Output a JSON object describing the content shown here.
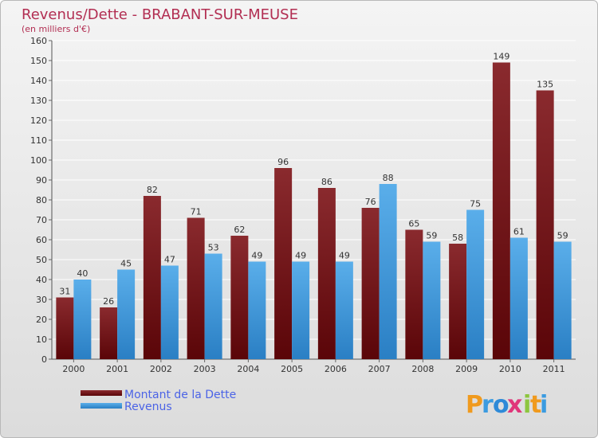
{
  "chart_data": {
    "type": "bar",
    "title": "Revenus/Dette - BRABANT-SUR-MEUSE",
    "subtitle": "(en milliers d'€)",
    "categories": [
      "2000",
      "2001",
      "2002",
      "2003",
      "2004",
      "2005",
      "2006",
      "2007",
      "2008",
      "2009",
      "2010",
      "2011"
    ],
    "series": [
      {
        "name": "Montant de la Dette",
        "values": [
          31,
          26,
          82,
          71,
          62,
          96,
          86,
          76,
          65,
          58,
          149,
          135
        ],
        "color": "#6e0f12"
      },
      {
        "name": "Revenus",
        "values": [
          40,
          45,
          47,
          53,
          49,
          49,
          49,
          88,
          59,
          75,
          61,
          59
        ],
        "color": "#3f98dc"
      }
    ],
    "ylim": [
      0,
      160
    ],
    "yticks": [
      0,
      10,
      20,
      30,
      40,
      50,
      60,
      70,
      80,
      90,
      100,
      110,
      120,
      130,
      140,
      150,
      160
    ],
    "grid": true,
    "legend_position": "bottom-left"
  },
  "logo": {
    "text": "Proxiti",
    "letters": [
      "P",
      "r",
      "o",
      "x",
      "i",
      "t",
      "i"
    ],
    "colors": [
      "#f09a1e",
      "#3b9be0",
      "#2e8ad8",
      "#e0367a",
      "#8dc63f",
      "#f09a1e",
      "#3b9be0"
    ]
  }
}
